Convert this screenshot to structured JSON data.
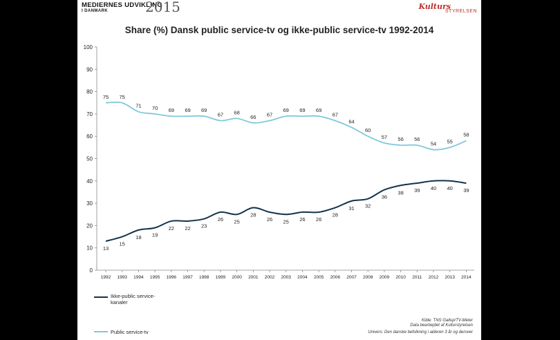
{
  "header": {
    "brand_line1": "MEDIERNES UDVIKLING",
    "brand_line2": "I DANMARK",
    "brand_year": "2015",
    "logo_top": "Kulturs",
    "logo_bottom": "STYRELSEN"
  },
  "chart_data": {
    "type": "line",
    "title": "Share (%) Dansk public service-tv og ikke-public service-tv 1992-2014",
    "x": [
      "1992",
      "1993",
      "1994",
      "1995",
      "1996",
      "1997",
      "1998",
      "1999",
      "2000",
      "2001",
      "2002",
      "2003",
      "2004",
      "2005",
      "2006",
      "2007",
      "2008",
      "2009",
      "2010",
      "2011",
      "2012",
      "2013",
      "2014"
    ],
    "ylim": [
      0,
      100
    ],
    "yticks": [
      0,
      10,
      20,
      30,
      40,
      50,
      60,
      70,
      80,
      90,
      100
    ],
    "grid": false,
    "series": [
      {
        "name": "Ikke-public service-kanaler",
        "color": "#12324a",
        "values": [
          13,
          15,
          18,
          19,
          22,
          22,
          23,
          26,
          25,
          28,
          26,
          25,
          26,
          26,
          28,
          31,
          32,
          36,
          38,
          39,
          40,
          40,
          39
        ],
        "labels": [
          "13",
          "15",
          "18",
          "19",
          "22",
          "22",
          "23",
          "26",
          "25",
          "28",
          "26",
          "25",
          "26",
          "26",
          "28",
          "31",
          "32",
          "36",
          "38",
          "39",
          "40",
          "40",
          "39"
        ]
      },
      {
        "name": "Public service-tv",
        "color": "#7fc8dc",
        "values": [
          75,
          75,
          71,
          70,
          69,
          69,
          69,
          67,
          68,
          66,
          67,
          69,
          69,
          69,
          67,
          64,
          60,
          57,
          56,
          56,
          54,
          55,
          58
        ],
        "labels": [
          "75",
          "75",
          "71",
          "70",
          "69",
          "69",
          "69",
          "67",
          "68",
          "66",
          "67",
          "69",
          "69",
          "69",
          "67",
          "64",
          "60",
          "57",
          "56",
          "56",
          "54",
          "55",
          "58"
        ]
      }
    ],
    "legend": {
      "position": "bottom-left",
      "line1_a": "Ikke-public service-",
      "line1_b": "kanaler",
      "line2": "Public service-tv"
    },
    "source": {
      "line1": "Kilde: TNS Gallup/TV-Meter",
      "line2": "Data bearbejdet af Kulturstyrelsen",
      "line3": "Univers: Den danske befolkning i alderen 3 år og derover"
    }
  }
}
